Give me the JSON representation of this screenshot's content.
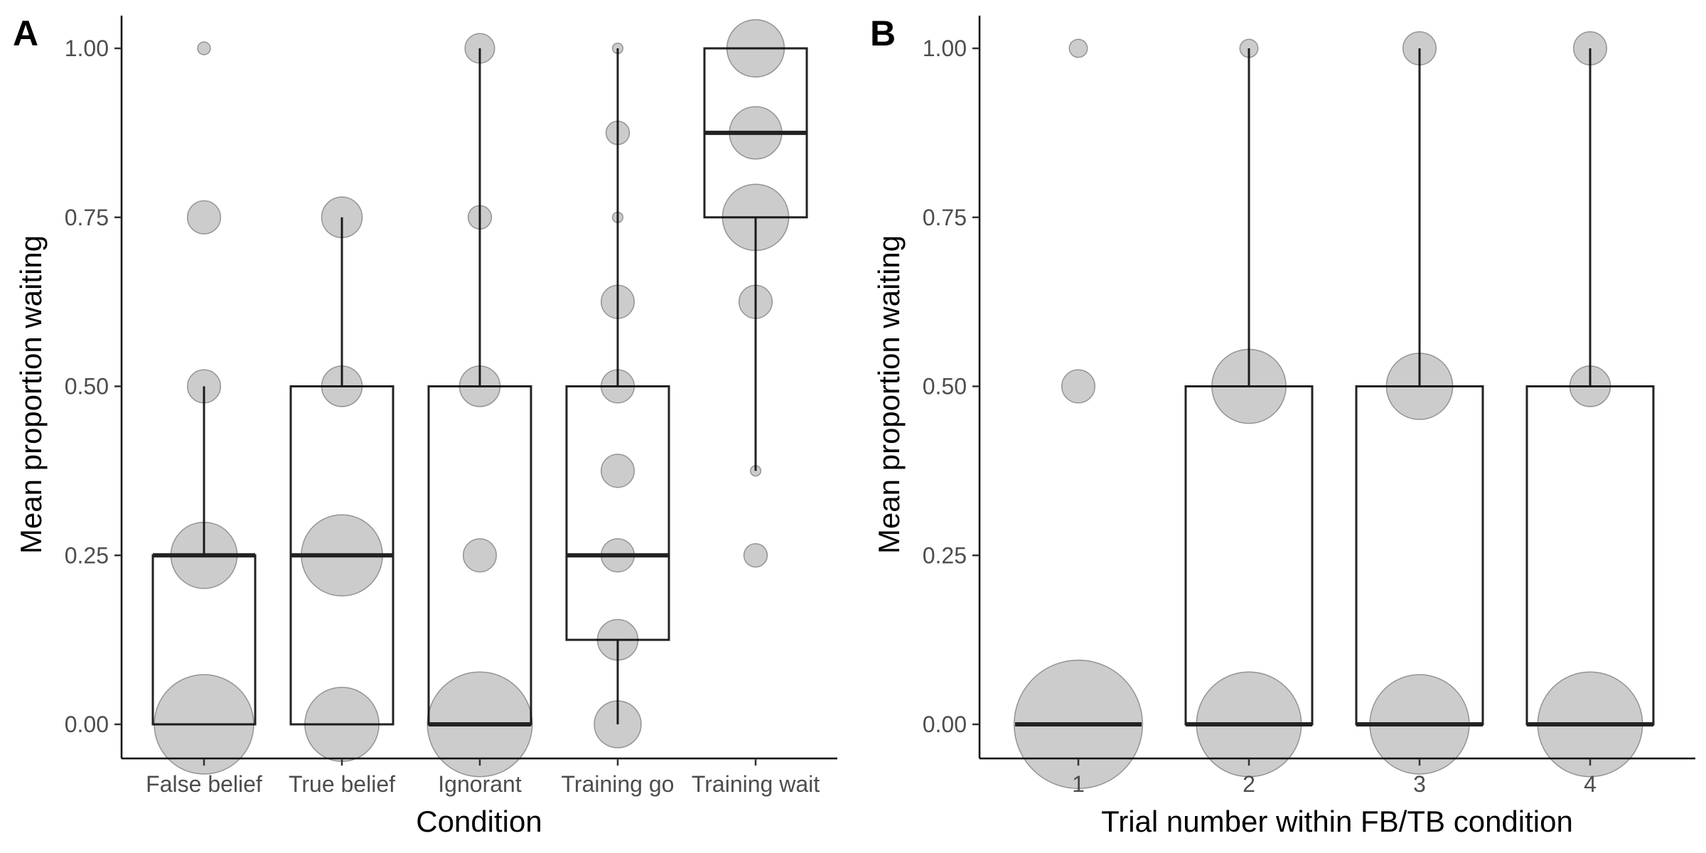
{
  "chart_data": [
    {
      "panel_label": "A",
      "type": "boxplot",
      "xlabel": "Condition",
      "ylabel": "Mean proportion waiting",
      "ylim": [
        -0.05,
        1.05
      ],
      "yticks": [
        "0.00",
        "0.25",
        "0.50",
        "0.75",
        "1.00"
      ],
      "ytick_values": [
        0,
        0.25,
        0.5,
        0.75,
        1
      ],
      "categories": [
        "False belief",
        "True belief",
        "Ignorant",
        "Training go",
        "Training wait"
      ],
      "boxes": [
        {
          "q1": 0,
          "median": 0.25,
          "q3": 0.25,
          "whisker_low": 0,
          "whisker_high": 0.5
        },
        {
          "q1": 0,
          "median": 0.25,
          "q3": 0.5,
          "whisker_low": 0,
          "whisker_high": 0.75
        },
        {
          "q1": 0,
          "median": 0,
          "q3": 0.5,
          "whisker_low": 0,
          "whisker_high": 1.0
        },
        {
          "q1": 0.125,
          "median": 0.25,
          "q3": 0.5,
          "whisker_low": 0,
          "whisker_high": 1.0
        },
        {
          "q1": 0.75,
          "median": 0.875,
          "q3": 1.0,
          "whisker_low": 0.375,
          "whisker_high": 1.0
        }
      ],
      "points": [
        [
          {
            "y": 0,
            "n": 9
          },
          {
            "y": 0.25,
            "n": 4
          },
          {
            "y": 0.5,
            "n": 1
          },
          {
            "y": 0.75,
            "n": 1
          },
          {
            "y": 1.0,
            "n": 0.15
          }
        ],
        [
          {
            "y": 0,
            "n": 5
          },
          {
            "y": 0.25,
            "n": 6
          },
          {
            "y": 0.5,
            "n": 1.5
          },
          {
            "y": 0.75,
            "n": 1.5
          }
        ],
        [
          {
            "y": 0,
            "n": 10
          },
          {
            "y": 0.25,
            "n": 1.0
          },
          {
            "y": 0.5,
            "n": 1.5
          },
          {
            "y": 0.75,
            "n": 0.5
          },
          {
            "y": 1.0,
            "n": 0.8
          }
        ],
        [
          {
            "y": 0,
            "n": 2
          },
          {
            "y": 0.125,
            "n": 1.5
          },
          {
            "y": 0.25,
            "n": 1.0
          },
          {
            "y": 0.375,
            "n": 1.0
          },
          {
            "y": 0.5,
            "n": 1.0
          },
          {
            "y": 0.625,
            "n": 1.0
          },
          {
            "y": 0.75,
            "n": 0.1
          },
          {
            "y": 0.875,
            "n": 0.5
          },
          {
            "y": 1.0,
            "n": 0.1
          }
        ],
        [
          {
            "y": 0.25,
            "n": 0.5
          },
          {
            "y": 0.375,
            "n": 0.1
          },
          {
            "y": 0.625,
            "n": 1.0
          },
          {
            "y": 0.75,
            "n": 4
          },
          {
            "y": 0.875,
            "n": 2.5
          },
          {
            "y": 1.0,
            "n": 3
          }
        ]
      ]
    },
    {
      "panel_label": "B",
      "type": "boxplot",
      "xlabel": "Trial number within FB/TB condition",
      "ylabel": "Mean proportion waiting",
      "ylim": [
        -0.05,
        1.05
      ],
      "yticks": [
        "0.00",
        "0.25",
        "0.50",
        "0.75",
        "1.00"
      ],
      "ytick_values": [
        0,
        0.25,
        0.5,
        0.75,
        1
      ],
      "categories": [
        "1",
        "2",
        "3",
        "4"
      ],
      "boxes": [
        {
          "q1": 0,
          "median": 0,
          "q3": 0,
          "whisker_low": 0,
          "whisker_high": 0
        },
        {
          "q1": 0,
          "median": 0,
          "q3": 0.5,
          "whisker_low": 0,
          "whisker_high": 1.0
        },
        {
          "q1": 0,
          "median": 0,
          "q3": 0.5,
          "whisker_low": 0,
          "whisker_high": 1.0
        },
        {
          "q1": 0,
          "median": 0,
          "q3": 0.5,
          "whisker_low": 0,
          "whisker_high": 1.0
        }
      ],
      "points": [
        [
          {
            "y": 0,
            "n": 15
          },
          {
            "y": 0.5,
            "n": 1.0
          },
          {
            "y": 1.0,
            "n": 0.3
          }
        ],
        [
          {
            "y": 0,
            "n": 10
          },
          {
            "y": 0.5,
            "n": 5
          },
          {
            "y": 1.0,
            "n": 0.3
          }
        ],
        [
          {
            "y": 0,
            "n": 9
          },
          {
            "y": 0.5,
            "n": 4
          },
          {
            "y": 1.0,
            "n": 1.0
          }
        ],
        [
          {
            "y": 0,
            "n": 10
          },
          {
            "y": 0.5,
            "n": 1.5
          },
          {
            "y": 1.0,
            "n": 1.0
          }
        ]
      ]
    }
  ]
}
